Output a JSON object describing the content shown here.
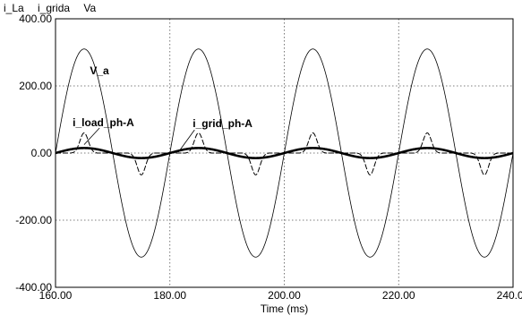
{
  "legend": [
    "i_La",
    "i_grida",
    "Va"
  ],
  "chart_data": {
    "type": "line",
    "title": "",
    "xlabel": "Time (ms)",
    "ylabel": "",
    "xlim": [
      160,
      240
    ],
    "ylim": [
      -400,
      400
    ],
    "x_ticks": [
      "160.00",
      "180.00",
      "200.00",
      "220.00",
      "240.00"
    ],
    "y_ticks": [
      "400.00",
      "200.00",
      "0.00",
      "-200.00",
      "-400.00"
    ],
    "grid": true,
    "series": [
      {
        "name": "i_La",
        "style": "pulse",
        "waveform": "nonlinear load current pulses: about +60 near each voltage positive peak and about -65 near each negative peak, ~0 elsewhere",
        "peak_times_ms": [
          165,
          175,
          185,
          195,
          205,
          215,
          225,
          235
        ],
        "peak_values": [
          60,
          -65,
          60,
          -65,
          60,
          -65,
          60,
          -65
        ]
      },
      {
        "name": "i_grida",
        "style": "sinusoid",
        "amplitude": 15,
        "frequency_hz": 50,
        "phase_peak_ms": 165
      },
      {
        "name": "Va",
        "style": "sinusoid",
        "amplitude": 310,
        "frequency_hz": 50,
        "phase_peak_ms": 165
      }
    ],
    "annotations": [
      {
        "text": "V_a",
        "x": 166,
        "y": 235,
        "target_series": "Va"
      },
      {
        "text": "i_load_ph-A",
        "x": 163,
        "y": 80,
        "target_series": "i_La"
      },
      {
        "text": "i_grid_ph-A",
        "x": 184,
        "y": 77,
        "target_series": "i_grida"
      }
    ]
  }
}
